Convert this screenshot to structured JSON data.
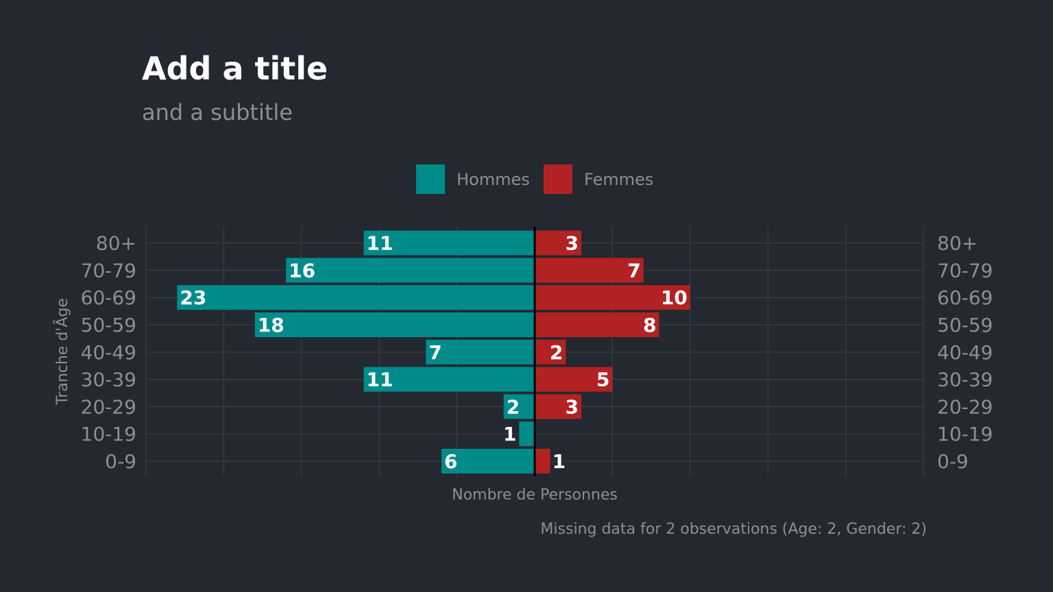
{
  "chart_data": {
    "type": "bar",
    "orientation": "horizontal-diverging",
    "title": "Add a title",
    "subtitle": "and a subtitle",
    "xlabel": "Nombre de Personnes",
    "ylabel": "Tranche d'Âge",
    "caption": "Missing data for 2 observations (Age: 2, Gender: 2)",
    "categories": [
      "0-9",
      "10-19",
      "20-29",
      "30-39",
      "40-49",
      "50-59",
      "60-69",
      "70-79",
      "80+"
    ],
    "series": [
      {
        "name": "Hommes",
        "color": "#008B8B",
        "side": "left",
        "values": [
          6,
          1,
          2,
          11,
          7,
          18,
          23,
          16,
          11
        ]
      },
      {
        "name": "Femmes",
        "color": "#B22222",
        "side": "right",
        "values": [
          1,
          0,
          3,
          5,
          2,
          8,
          10,
          7,
          3
        ]
      }
    ],
    "xlim": [
      -25,
      25
    ],
    "x_ticks_labeled": false,
    "grid": true,
    "legend_position": "top",
    "colors": {
      "background": "#242831",
      "grid": "#3A3E47",
      "text": "#8C8F96",
      "title": "#FFFFFF",
      "bar_label": "#FFFFFF",
      "zero_line": "#000000"
    }
  }
}
